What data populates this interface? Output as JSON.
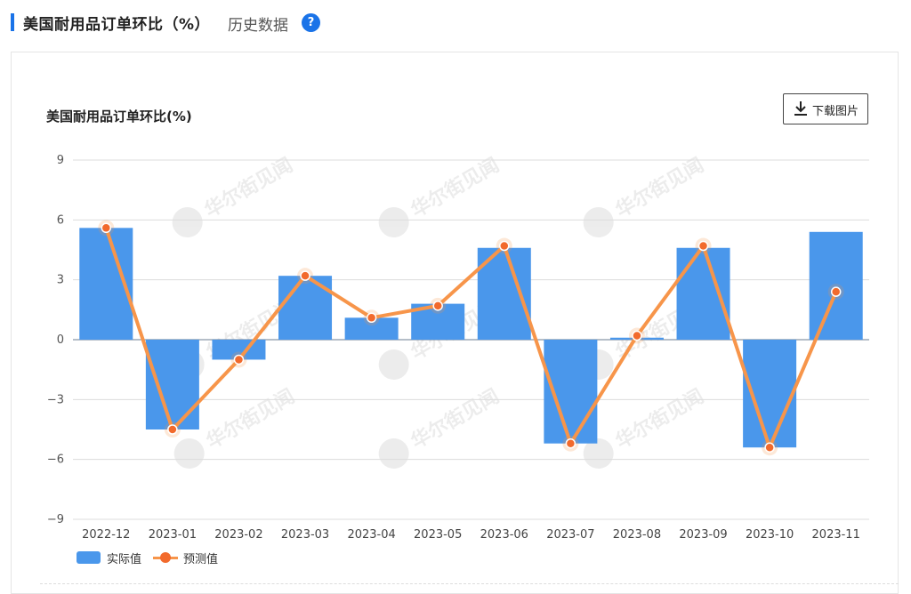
{
  "header": {
    "title": "美国耐用品订单环比（%）",
    "history_label": "历史数据",
    "help_symbol": "?"
  },
  "toolbar": {
    "download_label": "下载图片",
    "download_icon": "download-icon"
  },
  "watermark_text": "华尔街见闻",
  "colors": {
    "accent": "#1a73e8",
    "bar": "#4a97eb",
    "line": "#f7954a",
    "point": "#f26a2c"
  },
  "chart_data": {
    "type": "bar",
    "title": "美国耐用品订单环比(%)",
    "categories": [
      "2022-12",
      "2023-01",
      "2023-02",
      "2023-03",
      "2023-04",
      "2023-05",
      "2023-06",
      "2023-07",
      "2023-08",
      "2023-09",
      "2023-10",
      "2023-11"
    ],
    "ylim": [
      -9,
      9
    ],
    "yticks": [
      9,
      6,
      3,
      0,
      -3,
      -6,
      -9
    ],
    "ytick_labels": [
      "9",
      "6",
      "3",
      "0",
      "−3",
      "−6",
      "−9"
    ],
    "grid": true,
    "legend_position": "bottom-left",
    "series": [
      {
        "name": "实际值",
        "type": "bar",
        "values": [
          5.6,
          -4.5,
          -1.0,
          3.2,
          1.1,
          1.8,
          4.6,
          -5.2,
          0.1,
          4.6,
          -5.4,
          5.4
        ]
      },
      {
        "name": "预测值",
        "type": "line",
        "values": [
          5.6,
          -4.5,
          -1.0,
          3.2,
          1.1,
          1.7,
          4.7,
          -5.2,
          0.2,
          4.7,
          -5.4,
          2.4
        ]
      }
    ]
  }
}
